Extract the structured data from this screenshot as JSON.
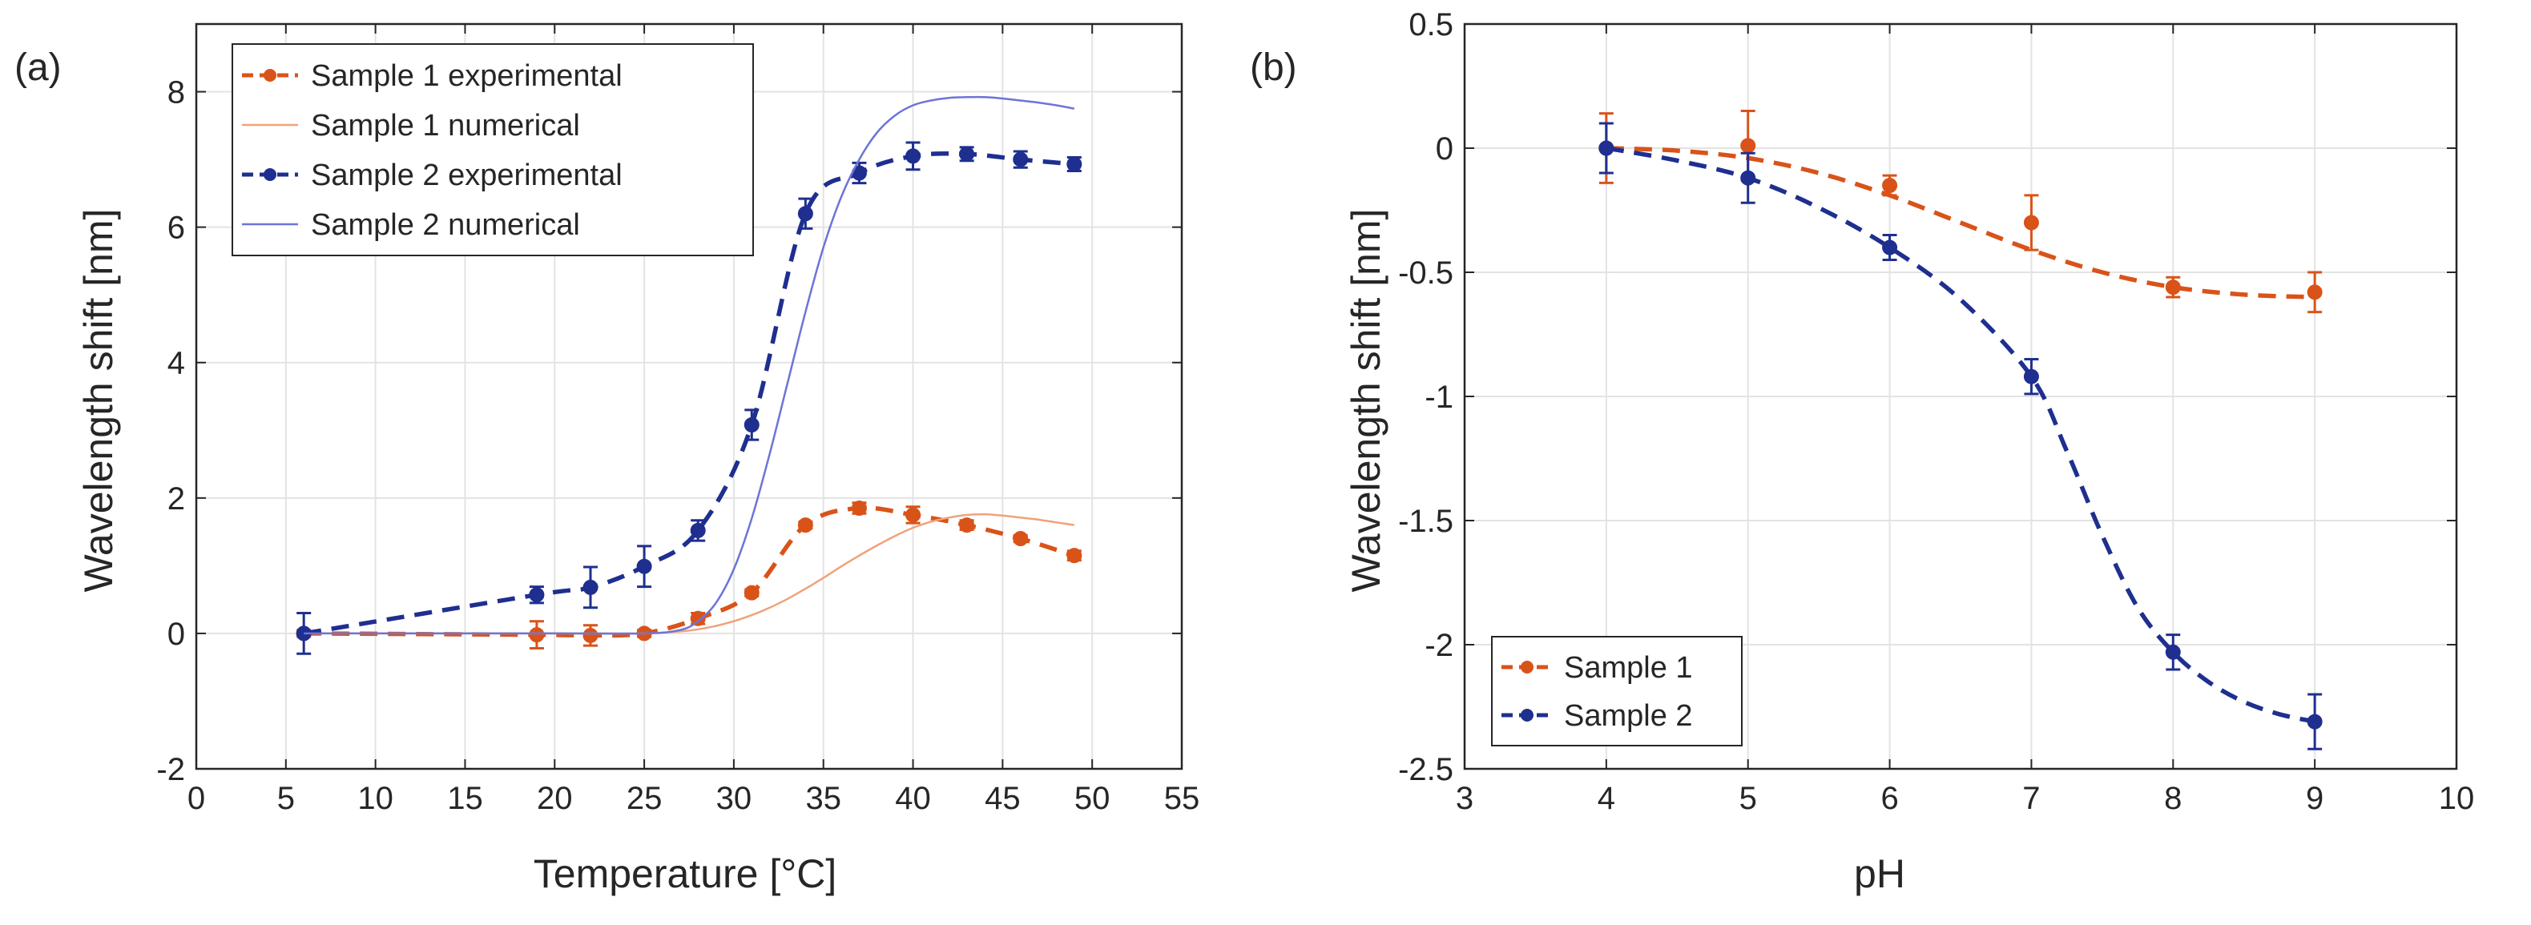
{
  "chart_data": [
    {
      "panel_label": "(a)",
      "type": "line",
      "xlabel": "Temperature [°C]",
      "ylabel": "Wavelength shift [nm]",
      "xlim": [
        0,
        55
      ],
      "ylim": [
        -2,
        9
      ],
      "xticks": [
        "0",
        "5",
        "10",
        "15",
        "20",
        "25",
        "30",
        "35",
        "40",
        "45",
        "50",
        "55"
      ],
      "yticks": [
        "-2",
        "0",
        "2",
        "4",
        "6",
        "8"
      ],
      "grid": true,
      "legend_position": "top-left",
      "series": [
        {
          "name": "Sample 1 experimental",
          "style": "dashed-marker",
          "color": "#D95319",
          "x": [
            6,
            19,
            22,
            25,
            28,
            31,
            34,
            37,
            40,
            43,
            46,
            49
          ],
          "y": [
            0.0,
            -0.02,
            -0.03,
            0.0,
            0.22,
            0.6,
            1.6,
            1.85,
            1.75,
            1.6,
            1.4,
            1.15
          ],
          "err": [
            0.05,
            0.2,
            0.15,
            0.05,
            0.08,
            0.05,
            0.05,
            0.08,
            0.12,
            0.07,
            0.05,
            0.07
          ]
        },
        {
          "name": "Sample 1 numerical",
          "style": "solid-thin",
          "color": "#F0A27A",
          "x": [
            6,
            20,
            25,
            27,
            28,
            29,
            30,
            31,
            32,
            33,
            34,
            35,
            36,
            37,
            38,
            39,
            40,
            41,
            42,
            43,
            44,
            45,
            46,
            47,
            48,
            49
          ],
          "y": [
            0.0,
            0.0,
            0.0,
            0.03,
            0.06,
            0.11,
            0.18,
            0.27,
            0.38,
            0.51,
            0.66,
            0.82,
            0.99,
            1.15,
            1.3,
            1.44,
            1.56,
            1.65,
            1.71,
            1.75,
            1.76,
            1.74,
            1.71,
            1.68,
            1.64,
            1.6
          ]
        },
        {
          "name": "Sample 2 experimental",
          "style": "dashed-marker",
          "color": "#1F2F8F",
          "x": [
            6,
            19,
            22,
            25,
            28,
            31,
            34,
            37,
            40,
            43,
            46,
            49
          ],
          "y": [
            0.0,
            0.57,
            0.68,
            0.99,
            1.52,
            3.08,
            6.2,
            6.8,
            7.05,
            7.08,
            7.0,
            6.93
          ],
          "err": [
            0.3,
            0.12,
            0.3,
            0.3,
            0.15,
            0.22,
            0.22,
            0.15,
            0.2,
            0.1,
            0.12,
            0.1
          ]
        },
        {
          "name": "Sample 2 numerical",
          "style": "solid-thin",
          "color": "#6C74D8",
          "x": [
            6,
            20,
            25,
            27,
            28,
            29,
            30,
            31,
            32,
            33,
            34,
            35,
            36,
            37,
            38,
            39,
            40,
            41,
            42,
            43,
            44,
            45,
            46,
            47,
            48,
            49
          ],
          "y": [
            0.0,
            0.0,
            0.0,
            0.05,
            0.18,
            0.45,
            0.95,
            1.7,
            2.65,
            3.7,
            4.75,
            5.7,
            6.45,
            7.0,
            7.4,
            7.65,
            7.8,
            7.87,
            7.91,
            7.92,
            7.92,
            7.9,
            7.87,
            7.84,
            7.8,
            7.75
          ]
        }
      ]
    },
    {
      "panel_label": "(b)",
      "type": "line",
      "xlabel": "pH",
      "ylabel": "Wavelength shift [nm]",
      "xlim": [
        3,
        10
      ],
      "ylim": [
        -2.5,
        0.5
      ],
      "xticks": [
        "3",
        "4",
        "5",
        "6",
        "7",
        "8",
        "9",
        "10"
      ],
      "yticks": [
        "-2.5",
        "-2",
        "-1.5",
        "-1",
        "-0.5",
        "0",
        "0.5"
      ],
      "grid": true,
      "legend_position": "bottom-left",
      "series": [
        {
          "name": "Sample 1",
          "style": "dashed-marker",
          "color": "#D95319",
          "x": [
            4,
            5,
            6,
            7,
            8,
            9
          ],
          "y": [
            0.0,
            0.01,
            -0.15,
            -0.3,
            -0.56,
            -0.58
          ],
          "err": [
            0.14,
            0.14,
            0.04,
            0.11,
            0.04,
            0.08
          ],
          "fit_x": [
            4,
            4.5,
            5,
            5.5,
            6,
            6.5,
            7,
            7.5,
            8,
            8.5,
            9
          ],
          "fit_y": [
            0.0,
            -0.01,
            -0.04,
            -0.1,
            -0.19,
            -0.3,
            -0.41,
            -0.5,
            -0.56,
            -0.59,
            -0.6
          ]
        },
        {
          "name": "Sample 2",
          "style": "dashed-marker",
          "color": "#1F2F8F",
          "x": [
            4,
            5,
            6,
            7,
            8,
            9
          ],
          "y": [
            0.0,
            -0.12,
            -0.4,
            -0.92,
            -2.03,
            -2.31
          ],
          "err": [
            0.1,
            0.1,
            0.05,
            0.07,
            0.07,
            0.11
          ],
          "fit_x": [
            4,
            4.5,
            5,
            5.5,
            6,
            6.5,
            7,
            7.25,
            7.5,
            7.75,
            8,
            8.25,
            8.5,
            8.75,
            9
          ],
          "fit_y": [
            0.0,
            -0.05,
            -0.12,
            -0.24,
            -0.4,
            -0.61,
            -0.92,
            -1.22,
            -1.56,
            -1.85,
            -2.03,
            -2.15,
            -2.23,
            -2.28,
            -2.31
          ]
        }
      ]
    }
  ]
}
